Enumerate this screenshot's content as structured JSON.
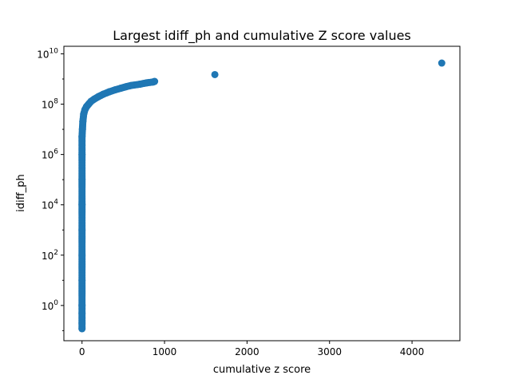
{
  "chart_data": {
    "type": "scatter",
    "title": "Largest idiff_ph and cumulative Z score values",
    "xlabel": "cumulative z score",
    "ylabel": "idiff_ph",
    "xlim": [
      -220,
      4580
    ],
    "ylim_log10": [
      -1.4,
      10.3
    ],
    "y_scale": "log",
    "grid": false,
    "marker_color": "#1f77b4",
    "x_ticks": [
      {
        "value": 0,
        "label": "0"
      },
      {
        "value": 1000,
        "label": "1000"
      },
      {
        "value": 2000,
        "label": "2000"
      },
      {
        "value": 3000,
        "label": "3000"
      },
      {
        "value": 4000,
        "label": "4000"
      }
    ],
    "y_ticks": [
      {
        "value_log10": 0,
        "base": "10",
        "exp": "0"
      },
      {
        "value_log10": 2,
        "base": "10",
        "exp": "2"
      },
      {
        "value_log10": 4,
        "base": "10",
        "exp": "4"
      },
      {
        "value_log10": 6,
        "base": "10",
        "exp": "6"
      },
      {
        "value_log10": 8,
        "base": "10",
        "exp": "8"
      },
      {
        "value_log10": 10,
        "base": "10",
        "exp": "10"
      }
    ],
    "series": [
      {
        "points": [
          {
            "x": 0,
            "y": 0.12
          },
          {
            "x": 0,
            "y": 0.2
          },
          {
            "x": 0,
            "y": 0.5
          },
          {
            "x": 0,
            "y": 1
          },
          {
            "x": 0,
            "y": 10
          },
          {
            "x": 0,
            "y": 100
          },
          {
            "x": 0,
            "y": 1000
          },
          {
            "x": 0,
            "y": 10000
          },
          {
            "x": 0,
            "y": 100000
          },
          {
            "x": 0,
            "y": 1000000
          },
          {
            "x": 0,
            "y": 5000000
          },
          {
            "x": 5,
            "y": 10000000
          },
          {
            "x": 10,
            "y": 20000000
          },
          {
            "x": 20,
            "y": 40000000
          },
          {
            "x": 35,
            "y": 60000000
          },
          {
            "x": 55,
            "y": 80000000
          },
          {
            "x": 80,
            "y": 100000000
          },
          {
            "x": 110,
            "y": 130000000
          },
          {
            "x": 150,
            "y": 160000000
          },
          {
            "x": 200,
            "y": 200000000
          },
          {
            "x": 260,
            "y": 250000000
          },
          {
            "x": 330,
            "y": 310000000
          },
          {
            "x": 400,
            "y": 370000000
          },
          {
            "x": 470,
            "y": 430000000
          },
          {
            "x": 530,
            "y": 490000000
          },
          {
            "x": 590,
            "y": 550000000
          },
          {
            "x": 700,
            "y": 620000000
          },
          {
            "x": 780,
            "y": 700000000
          },
          {
            "x": 860,
            "y": 760000000
          },
          {
            "x": 880,
            "y": 800000000
          },
          {
            "x": 1610,
            "y": 1500000000
          },
          {
            "x": 4360,
            "y": 4300000000
          }
        ]
      }
    ]
  }
}
